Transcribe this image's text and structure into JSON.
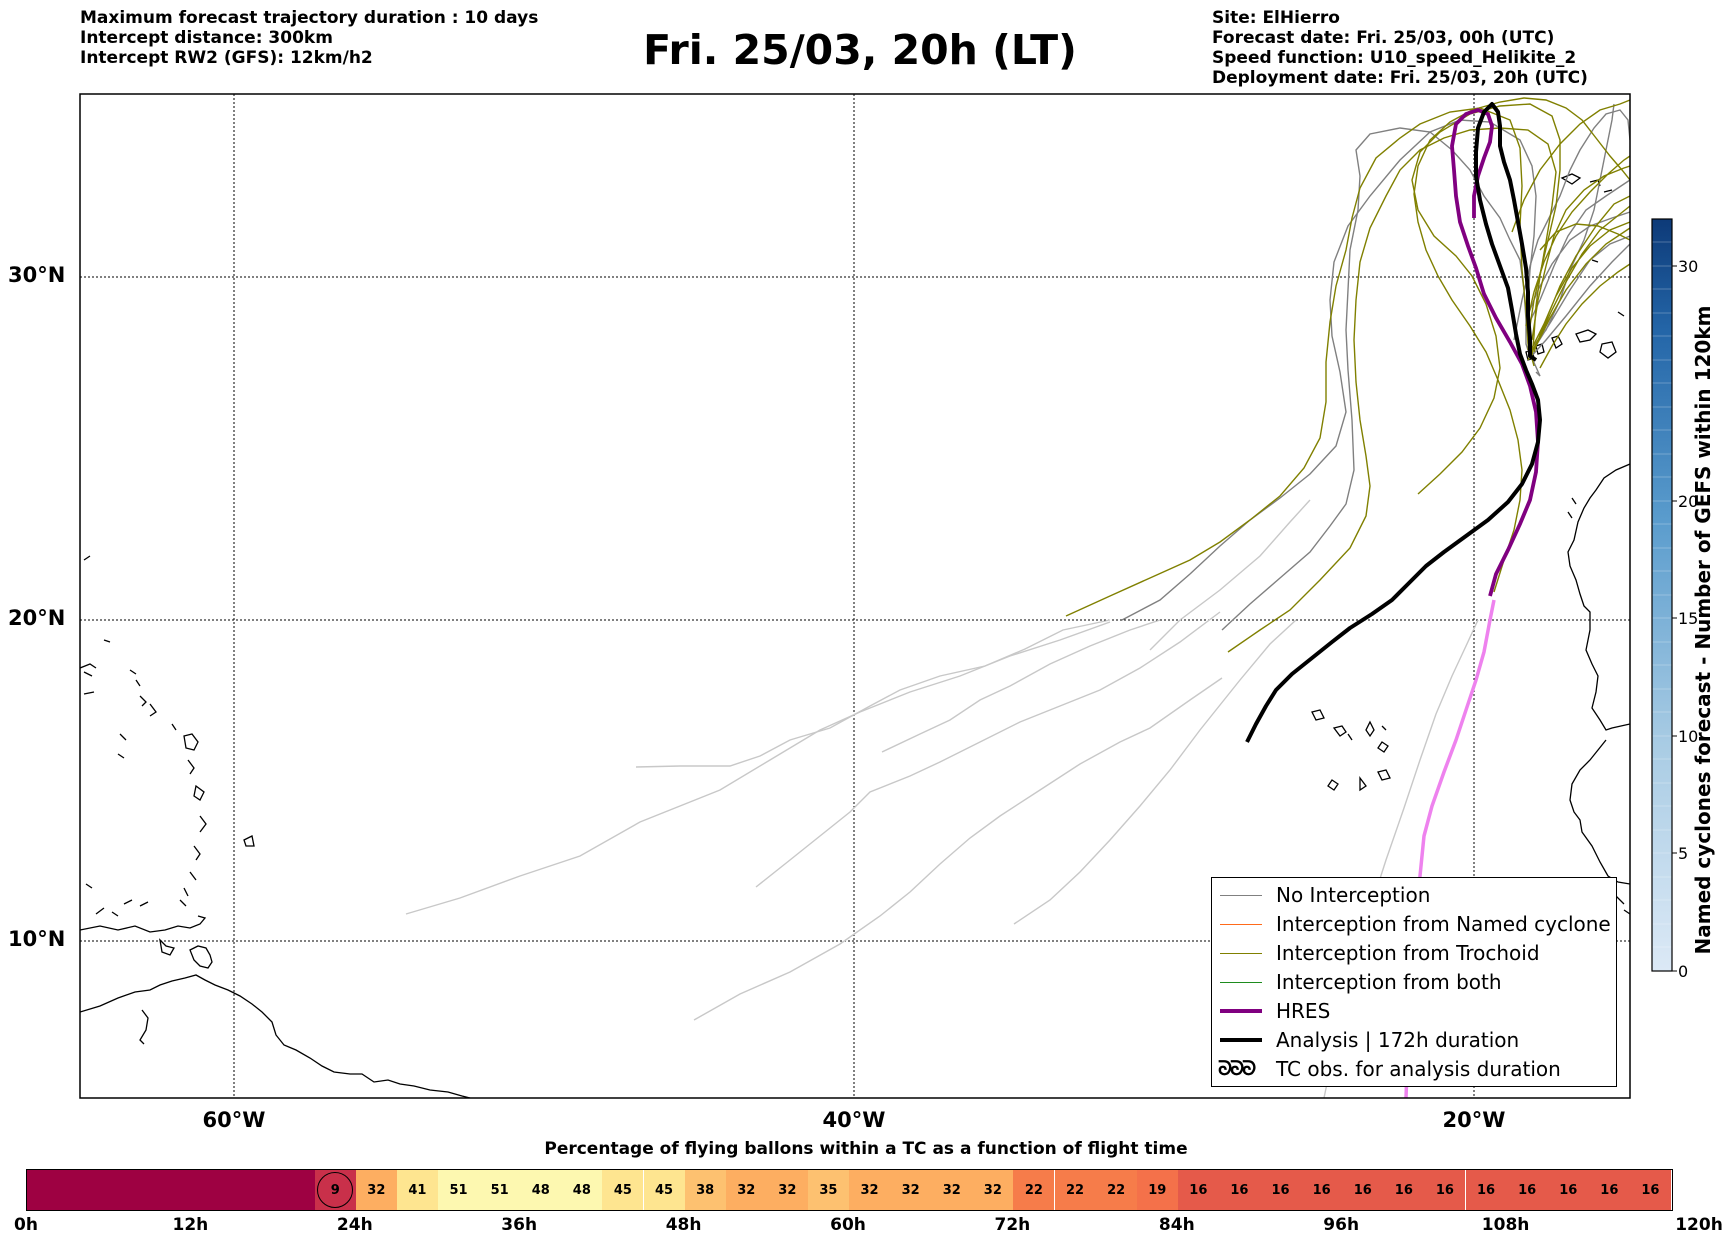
{
  "header": {
    "left": [
      "Maximum forecast trajectory duration : 10 days",
      "Intercept distance: 300km",
      "Intercept RW2 (GFS):  12km/h2"
    ],
    "title": "Fri. 25/03, 20h (LT)",
    "right": [
      "Site: ElHierro",
      "Forecast date: Fri. 25/03, 00h (UTC)",
      "Speed function: U10_speed_Helikite_2",
      "Deployment date: Fri. 25/03, 20h (UTC)"
    ]
  },
  "map": {
    "lat_labels": [
      "30°N",
      "20°N",
      "10°N"
    ],
    "lon_labels": [
      "60°W",
      "40°W",
      "20°W"
    ],
    "extent": {
      "lon_min": -65,
      "lon_max": -15,
      "lat_min": 5.4,
      "lat_max": 34.7
    },
    "gridlines": "dotted",
    "coastline": "#000000",
    "tracks": {
      "no_interception_color": "#808080",
      "trochoid_color": "#808000",
      "hres_color": "#800080",
      "hres_early_color": "#ee82ee",
      "analysis_color": "#000000",
      "light_track_color": "#c8c8c8"
    }
  },
  "legend": [
    {
      "label": "No Interception",
      "color": "#808080",
      "style": "thin"
    },
    {
      "label": "Interception from Named cyclone",
      "color": "#ff6a1a",
      "style": "thin"
    },
    {
      "label": "Interception from Trochoid",
      "color": "#808000",
      "style": "thin"
    },
    {
      "label": "Interception from both",
      "color": "#1e8c1e",
      "style": "thin"
    },
    {
      "label": "HRES",
      "color": "#800080",
      "style": "thick"
    },
    {
      "label": "Analysis | 172h duration",
      "color": "#000000",
      "style": "thick"
    },
    {
      "label": "TC obs. for analysis duration",
      "color": "#000000",
      "style": "symbol",
      "symbol": "ᘐᘐᘐ"
    }
  ],
  "colorbar": {
    "label": "Named cyclones forecast - Number of GEFS within 120km",
    "ticks": [
      "0",
      "5",
      "10",
      "15",
      "20",
      "30"
    ],
    "min": 0,
    "max": 32,
    "color_low": "#dce9f6",
    "color_high": "#0d3a78"
  },
  "flight_time": {
    "title": "Percentage of flying ballons within a TC as a function of flight time",
    "tick_labels": [
      "0h",
      "12h",
      "24h",
      "36h",
      "48h",
      "60h",
      "72h",
      "84h",
      "96h",
      "108h",
      "120h"
    ],
    "leading_block_color": "#9e0142",
    "marker_value": "9",
    "values": [
      "32",
      "41",
      "51",
      "51",
      "48",
      "48",
      "45",
      "45",
      "38",
      "32",
      "32",
      "35",
      "32",
      "32",
      "32",
      "32",
      "22",
      "22",
      "22",
      "19",
      "16",
      "16",
      "16",
      "16",
      "16",
      "16",
      "16",
      "16",
      "16",
      "16",
      "16",
      "16"
    ]
  }
}
